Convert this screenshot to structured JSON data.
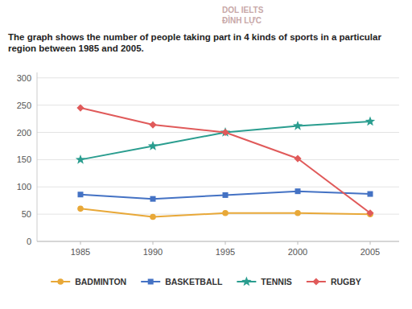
{
  "chart_data": {
    "type": "line",
    "title": "The graph shows the number of people taking part in 4 kinds of sports in a particular region between 1985 and 2005.",
    "annotations": [
      "DOL IELTS",
      "ĐÌNH LỰC"
    ],
    "x": [
      1985,
      1990,
      1995,
      2000,
      2005
    ],
    "xlim": [
      1982,
      2007
    ],
    "xticks": [
      1985,
      1990,
      1995,
      2000,
      2005
    ],
    "ylim": [
      0,
      310
    ],
    "yticks": [
      0,
      50,
      100,
      150,
      200,
      250,
      300
    ],
    "grid": true,
    "legend": "bottom",
    "series": [
      {
        "name": "BADMINTON",
        "color": "#e8a838",
        "marker": "circle",
        "values": [
          60,
          45,
          52,
          52,
          50
        ]
      },
      {
        "name": "BASKETBALL",
        "color": "#4472c4",
        "marker": "square",
        "values": [
          86,
          78,
          85,
          92,
          87
        ]
      },
      {
        "name": "TENNIS",
        "color": "#2a9d8f",
        "marker": "star",
        "values": [
          150,
          175,
          200,
          212,
          220
        ]
      },
      {
        "name": "RUGBY",
        "color": "#e05a5a",
        "marker": "diamond",
        "values": [
          245,
          214,
          200,
          152,
          52
        ]
      }
    ]
  }
}
